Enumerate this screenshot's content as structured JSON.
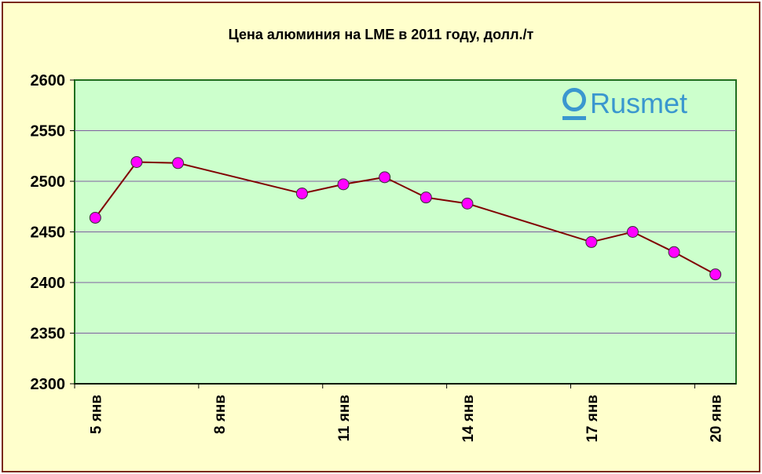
{
  "chart_data": {
    "type": "line",
    "title": "Цена алюминия на LME в 2011 году, долл./т",
    "xlabel": "",
    "ylabel": "",
    "x_days": [
      5,
      6,
      7,
      10,
      11,
      12,
      13,
      14,
      17,
      18,
      19,
      20
    ],
    "values": [
      2464,
      2519,
      2518,
      2488,
      2497,
      2504,
      2484,
      2478,
      2440,
      2450,
      2430,
      2408
    ],
    "x_tick_labels": [
      {
        "day": 5,
        "label": "5 янв"
      },
      {
        "day": 8,
        "label": "8 янв"
      },
      {
        "day": 11,
        "label": "11 янв"
      },
      {
        "day": 14,
        "label": "14 янв"
      },
      {
        "day": 17,
        "label": "17 янв"
      },
      {
        "day": 20,
        "label": "20 янв"
      }
    ],
    "xlim": [
      4.5,
      20.5
    ],
    "ylim": [
      2300,
      2600
    ],
    "y_ticks": [
      2300,
      2350,
      2400,
      2450,
      2500,
      2550,
      2600
    ],
    "grid": true,
    "legend": "none"
  },
  "logo": {
    "text": "Rusmet"
  },
  "colors": {
    "line": "#800000",
    "marker": "#FF00FF",
    "plot_bg": "#CCFFCC",
    "page_bg": "#FFFFCC",
    "grid": "#7f5f9f",
    "logo": "#3a97cf"
  }
}
